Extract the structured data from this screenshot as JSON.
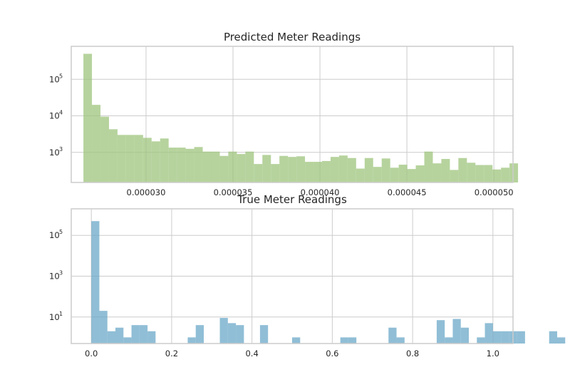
{
  "chart_data": [
    {
      "type": "bar",
      "title": "Predicted Meter Readings",
      "xlabel": "",
      "ylabel": "",
      "yscale": "log",
      "ylim": [
        150,
        800000
      ],
      "xlim": [
        2.57e-05,
        5.11e-05
      ],
      "xticks": [
        "0.000030",
        "0.000035",
        "0.000040",
        "0.000045",
        "0.000050"
      ],
      "xtick_values": [
        3e-05,
        3.5e-05,
        4e-05,
        4.5e-05,
        5e-05
      ],
      "yticks": [
        {
          "base": "10",
          "exp": "3",
          "value": 1000
        },
        {
          "base": "10",
          "exp": "4",
          "value": 10000
        },
        {
          "base": "10",
          "exp": "5",
          "value": 100000
        }
      ],
      "grid": true,
      "color": "#9dc47c",
      "bin_start": 2.64e-05,
      "bin_width": 4.9e-07,
      "values": [
        500000,
        20000,
        9500,
        4300,
        3000,
        3000,
        3000,
        2500,
        2000,
        2400,
        1350,
        1350,
        1250,
        1400,
        1050,
        1050,
        800,
        1050,
        900,
        1050,
        480,
        850,
        480,
        800,
        750,
        780,
        550,
        550,
        580,
        750,
        820,
        700,
        360,
        700,
        400,
        680,
        380,
        460,
        350,
        440,
        1050,
        500,
        660,
        330,
        700,
        520,
        450,
        450,
        340,
        380,
        500
      ]
    },
    {
      "type": "bar",
      "title": "True Meter Readings",
      "xlabel": "",
      "ylabel": "",
      "yscale": "log",
      "ylim": [
        0.5,
        2000000
      ],
      "xlim": [
        -0.05,
        1.05
      ],
      "xticks": [
        "0.0",
        "0.2",
        "0.4",
        "0.6",
        "0.8",
        "1.0"
      ],
      "xtick_values": [
        0.0,
        0.2,
        0.4,
        0.6,
        0.8,
        1.0
      ],
      "yticks": [
        {
          "base": "10",
          "exp": "1",
          "value": 10
        },
        {
          "base": "10",
          "exp": "3",
          "value": 1000
        },
        {
          "base": "10",
          "exp": "5",
          "value": 100000
        }
      ],
      "grid": true,
      "color": "#6ba8c8",
      "bin_start": 0.0,
      "bin_width": 0.02,
      "values": [
        500000,
        20,
        2,
        3,
        1,
        4,
        4,
        2,
        0,
        0,
        0,
        0,
        1,
        4,
        0,
        0,
        9,
        5,
        4,
        0,
        0,
        4,
        0,
        0,
        0,
        1,
        0,
        0,
        0,
        0,
        0,
        1,
        1,
        0,
        0,
        0,
        0,
        3,
        1,
        0,
        0,
        0,
        0,
        7,
        1,
        8,
        3,
        0,
        1,
        5,
        2,
        2,
        2,
        2,
        0,
        0,
        0,
        2,
        1
      ]
    }
  ]
}
